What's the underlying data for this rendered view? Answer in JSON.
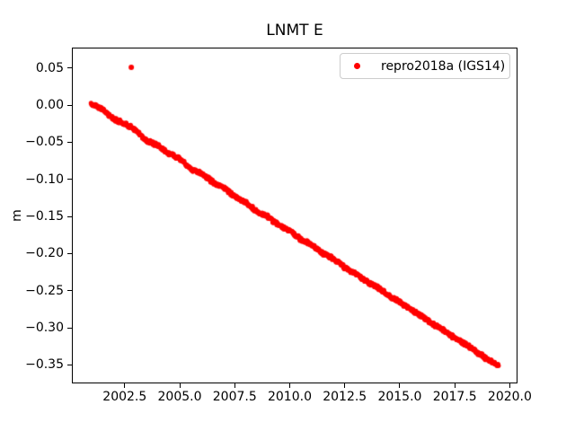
{
  "chart_data": {
    "type": "scatter",
    "title": "LNMT E",
    "xlabel": "",
    "ylabel": "m",
    "grid": false,
    "xlim": [
      2000.1,
      2020.35
    ],
    "ylim": [
      -0.375,
      0.0775
    ],
    "xticks": {
      "values": [
        2002.5,
        2005.0,
        2007.5,
        2010.0,
        2012.5,
        2015.0,
        2017.5,
        2020.0
      ],
      "labels": [
        "2002.5",
        "2005.0",
        "2007.5",
        "2010.0",
        "2012.5",
        "2015.0",
        "2017.5",
        "2020.0"
      ]
    },
    "yticks": {
      "values": [
        0.05,
        0.0,
        -0.05,
        -0.1,
        -0.15,
        -0.2,
        -0.25,
        -0.3,
        -0.35
      ],
      "labels": [
        "0.05",
        "0.00",
        "−0.05",
        "−0.10",
        "−0.15",
        "−0.20",
        "−0.25",
        "−0.30",
        "−0.35"
      ]
    },
    "legend": {
      "position": "upper right",
      "entries": [
        {
          "label": "repro2018a (IGS14)",
          "color": "#ff0000",
          "marker": "point"
        }
      ]
    },
    "series": [
      {
        "name": "repro2018a (IGS14)",
        "color": "#ff0000",
        "marker": "point",
        "trend_anchors": [
          [
            2001.0,
            0.002
          ],
          [
            2001.5,
            -0.006
          ],
          [
            2002.0,
            -0.019
          ],
          [
            2002.5,
            -0.025
          ],
          [
            2003.0,
            -0.033
          ],
          [
            2003.5,
            -0.048
          ],
          [
            2004.0,
            -0.054
          ],
          [
            2004.5,
            -0.065
          ],
          [
            2005.0,
            -0.072
          ],
          [
            2005.5,
            -0.086
          ],
          [
            2006.0,
            -0.092
          ],
          [
            2006.5,
            -0.104
          ],
          [
            2007.0,
            -0.111
          ],
          [
            2007.5,
            -0.123
          ],
          [
            2008.0,
            -0.131
          ],
          [
            2008.5,
            -0.143
          ],
          [
            2009.0,
            -0.15
          ],
          [
            2009.5,
            -0.162
          ],
          [
            2010.0,
            -0.169
          ],
          [
            2010.5,
            -0.181
          ],
          [
            2011.0,
            -0.188
          ],
          [
            2011.5,
            -0.2
          ],
          [
            2012.0,
            -0.207
          ],
          [
            2012.5,
            -0.219
          ],
          [
            2013.0,
            -0.227
          ],
          [
            2013.5,
            -0.238
          ],
          [
            2014.0,
            -0.246
          ],
          [
            2014.5,
            -0.257
          ],
          [
            2015.0,
            -0.265
          ],
          [
            2015.5,
            -0.276
          ],
          [
            2016.0,
            -0.284
          ],
          [
            2016.5,
            -0.295
          ],
          [
            2017.0,
            -0.303
          ],
          [
            2017.5,
            -0.314
          ],
          [
            2018.0,
            -0.322
          ],
          [
            2018.5,
            -0.333
          ],
          [
            2019.0,
            -0.343
          ],
          [
            2019.5,
            -0.351
          ]
        ],
        "outliers": [
          [
            2002.8,
            0.051
          ]
        ]
      }
    ]
  }
}
